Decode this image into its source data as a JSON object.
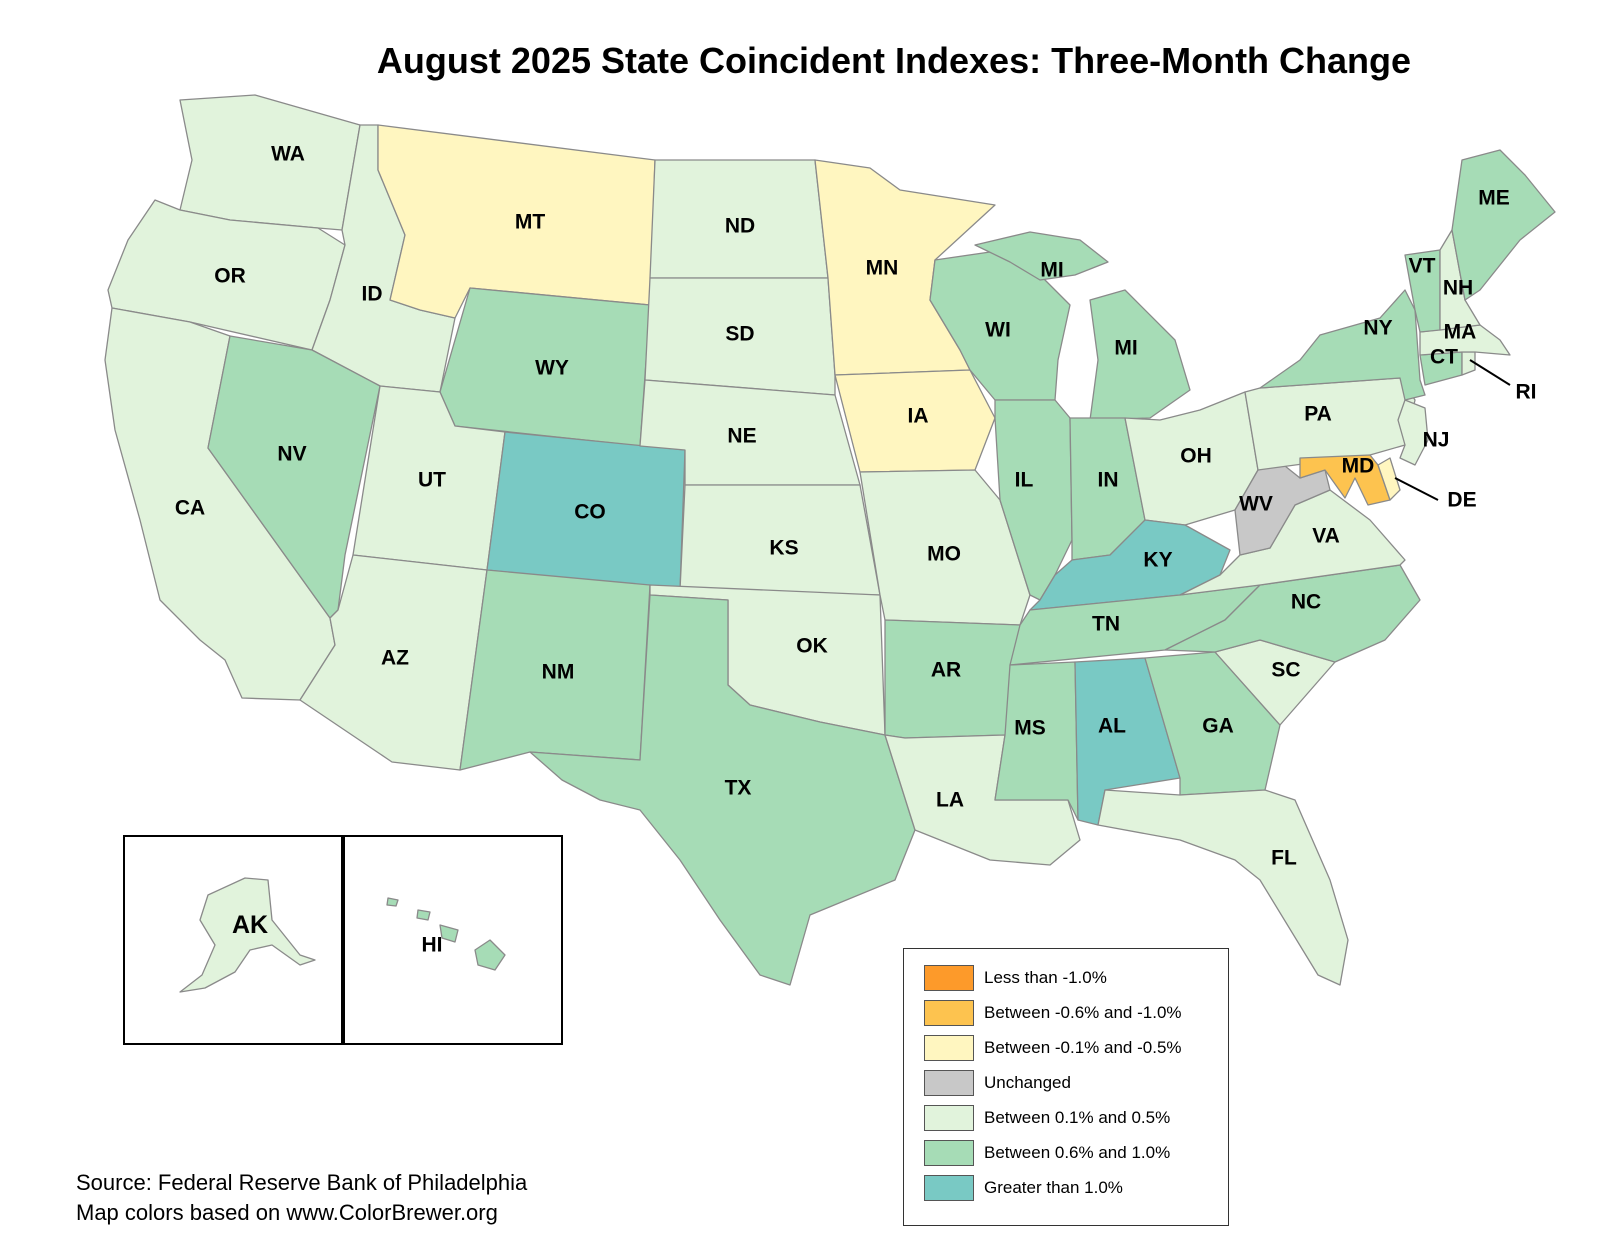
{
  "title": "August 2025 State Coincident Indexes: Three-Month Change",
  "legend": [
    {
      "key": "lt_neg1",
      "label": "Less than -1.0%",
      "color": "#fd9a2a"
    },
    {
      "key": "neg06_neg1",
      "label": "Between -0.6% and -1.0%",
      "color": "#fdc34f"
    },
    {
      "key": "neg01_neg05",
      "label": "Between -0.1% and -0.5%",
      "color": "#fff6c0"
    },
    {
      "key": "unchanged",
      "label": "Unchanged",
      "color": "#c8c8c8"
    },
    {
      "key": "p01_p05",
      "label": "Between 0.1% and 0.5%",
      "color": "#e1f3dc"
    },
    {
      "key": "p06_p1",
      "label": "Between 0.6% and 1.0%",
      "color": "#a6dcb6"
    },
    {
      "key": "gt1",
      "label": "Greater than 1.0%",
      "color": "#79c9c4"
    }
  ],
  "states": {
    "WA": "p01_p05",
    "OR": "p01_p05",
    "CA": "p01_p05",
    "ID": "p01_p05",
    "NV": "p06_p1",
    "MT": "neg01_neg05",
    "WY": "p06_p1",
    "UT": "p01_p05",
    "AZ": "p01_p05",
    "CO": "gt1",
    "NM": "p06_p1",
    "ND": "p01_p05",
    "SD": "p01_p05",
    "NE": "p01_p05",
    "KS": "p01_p05",
    "OK": "p01_p05",
    "TX": "p06_p1",
    "MN": "neg01_neg05",
    "IA": "neg01_neg05",
    "MO": "p01_p05",
    "AR": "p06_p1",
    "LA": "p01_p05",
    "WI": "p06_p1",
    "IL": "p06_p1",
    "MI": "p06_p1",
    "IN": "p06_p1",
    "OH": "p01_p05",
    "KY": "gt1",
    "TN": "p06_p1",
    "MS": "p06_p1",
    "AL": "gt1",
    "GA": "p06_p1",
    "FL": "p01_p05",
    "SC": "p01_p05",
    "NC": "p06_p1",
    "VA": "p01_p05",
    "WV": "unchanged",
    "MD": "neg06_neg1",
    "DE": "neg01_neg05",
    "PA": "p01_p05",
    "NJ": "p01_p05",
    "NY": "p06_p1",
    "CT": "p06_p1",
    "RI": "p01_p05",
    "MA": "p01_p05",
    "VT": "p06_p1",
    "NH": "p01_p05",
    "ME": "p06_p1",
    "AK": "p01_p05",
    "HI": "p06_p1"
  },
  "labels": {
    "WA": "WA",
    "OR": "OR",
    "CA": "CA",
    "ID": "ID",
    "NV": "NV",
    "MT": "MT",
    "WY": "WY",
    "UT": "UT",
    "AZ": "AZ",
    "CO": "CO",
    "NM": "NM",
    "ND": "ND",
    "SD": "SD",
    "NE": "NE",
    "KS": "KS",
    "OK": "OK",
    "TX": "TX",
    "MN": "MN",
    "IA": "IA",
    "MO": "MO",
    "AR": "AR",
    "LA": "LA",
    "WI": "WI",
    "IL": "IL",
    "MI": "MI",
    "MI_UP": "MI",
    "IN": "IN",
    "OH": "OH",
    "KY": "KY",
    "TN": "TN",
    "MS": "MS",
    "AL": "AL",
    "GA": "GA",
    "FL": "FL",
    "SC": "SC",
    "NC": "NC",
    "VA": "VA",
    "WV": "WV",
    "MD": "MD",
    "DE": "DE",
    "PA": "PA",
    "NJ": "NJ",
    "NY": "NY",
    "CT": "CT",
    "RI": "RI",
    "MA": "MA",
    "VT": "VT",
    "NH": "NH",
    "ME": "ME",
    "AK": "AK",
    "HI": "HI"
  },
  "source": {
    "line1": "Source: Federal Reserve Bank of Philadelphia",
    "line2": "Map colors based on www.ColorBrewer.org"
  }
}
